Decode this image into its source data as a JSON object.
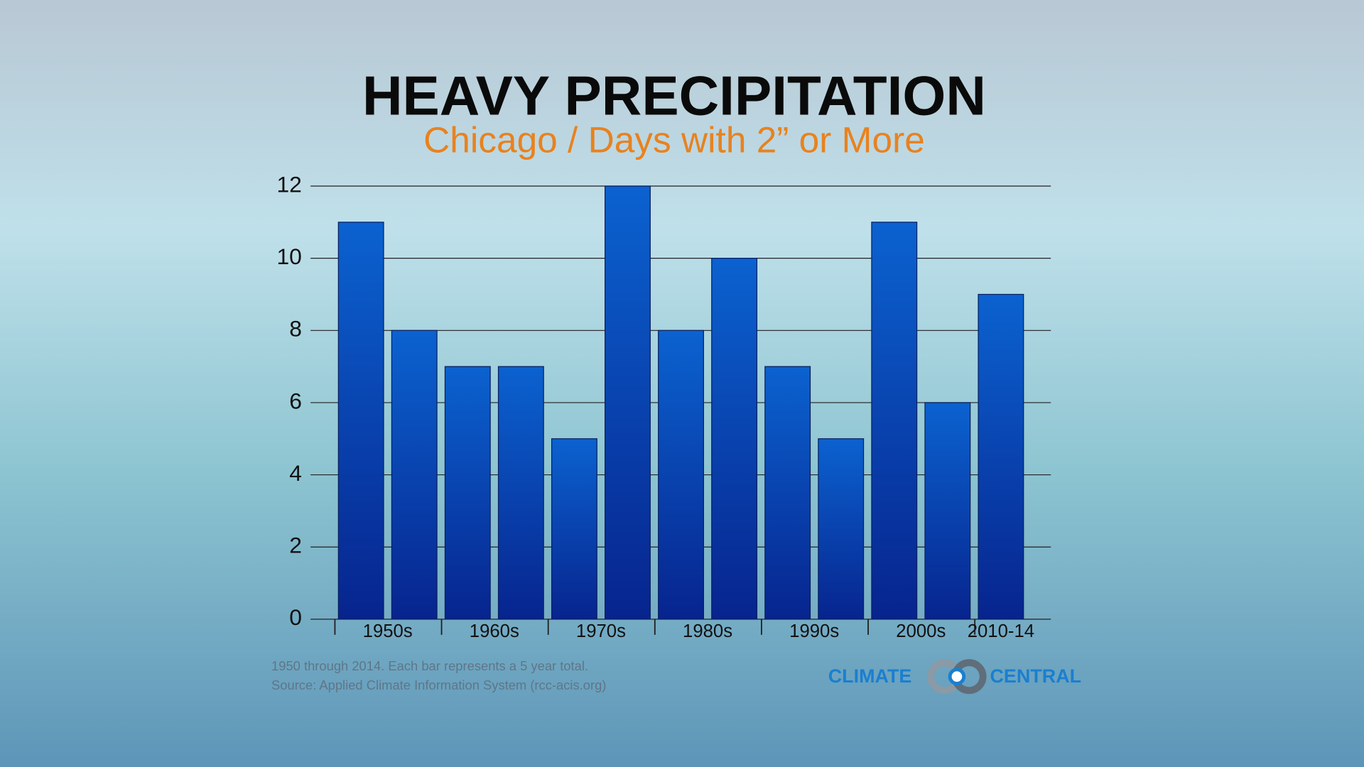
{
  "chart_data": {
    "type": "bar",
    "title": "HEAVY PRECIPITATION",
    "subtitle": "Chicago / Days with 2” or More",
    "categories": [
      null,
      null,
      null,
      null,
      null,
      null,
      null,
      null,
      null,
      null,
      null,
      null,
      null
    ],
    "groups": [
      "1950s",
      "1960s",
      "1970s",
      "1980s",
      "1990s",
      "2000s",
      "2010-14"
    ],
    "values": [
      11,
      8,
      7,
      7,
      5,
      12,
      8,
      10,
      7,
      5,
      11,
      6,
      9
    ],
    "color": "#0b56c0",
    "ylim": [
      0,
      12
    ],
    "yticks": [
      0,
      2,
      4,
      6,
      8,
      10,
      12
    ],
    "grid": true,
    "notes": [
      "1950 through 2014. Each bar represents a 5 year total.",
      "Source: Applied Climate Information System (rcc-acis.org)"
    ],
    "logo": [
      "CLIMATE",
      "CENTRAL"
    ]
  }
}
